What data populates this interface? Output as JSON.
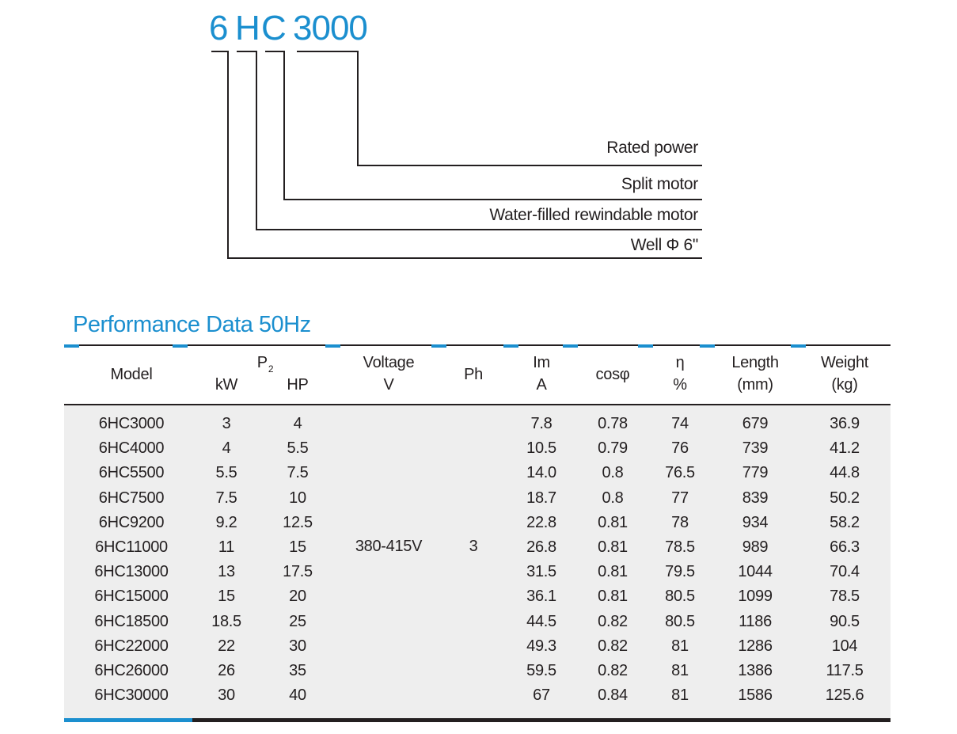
{
  "model_code": {
    "p6": "6",
    "pH": "H",
    "pC": "C",
    "power": "3000"
  },
  "legend": {
    "rated_power": "Rated power",
    "split_motor": "Split motor",
    "water_filled": "Water-filled rewindable motor",
    "well": "Well Φ 6\""
  },
  "section_title": "Performance Data 50Hz",
  "table": {
    "headers": {
      "model": "Model",
      "p2": "P",
      "p2_sub": "2",
      "kw": "kW",
      "hp": "HP",
      "voltage": "Voltage",
      "voltage_unit": "V",
      "ph": "Ph",
      "im": "Im",
      "im_unit": "A",
      "cos": "cosφ",
      "eta": "η",
      "eta_unit": "%",
      "length": "Length",
      "length_unit": "(mm)",
      "weight": "Weight",
      "weight_unit": "(kg)"
    },
    "voltage_value": "380-415V",
    "ph_value": "3",
    "columns": [
      "model",
      "kw",
      "hp",
      "im",
      "cos",
      "eta",
      "length",
      "weight"
    ],
    "rows": [
      {
        "model": "6HC3000",
        "kw": "3",
        "hp": "4",
        "im": "7.8",
        "cos": "0.78",
        "eta": "74",
        "length": "679",
        "weight": "36.9"
      },
      {
        "model": "6HC4000",
        "kw": "4",
        "hp": "5.5",
        "im": "10.5",
        "cos": "0.79",
        "eta": "76",
        "length": "739",
        "weight": "41.2"
      },
      {
        "model": "6HC5500",
        "kw": "5.5",
        "hp": "7.5",
        "im": "14.0",
        "cos": "0.8",
        "eta": "76.5",
        "length": "779",
        "weight": "44.8"
      },
      {
        "model": "6HC7500",
        "kw": "7.5",
        "hp": "10",
        "im": "18.7",
        "cos": "0.8",
        "eta": "77",
        "length": "839",
        "weight": "50.2"
      },
      {
        "model": "6HC9200",
        "kw": "9.2",
        "hp": "12.5",
        "im": "22.8",
        "cos": "0.81",
        "eta": "78",
        "length": "934",
        "weight": "58.2"
      },
      {
        "model": "6HC11000",
        "kw": "11",
        "hp": "15",
        "im": "26.8",
        "cos": "0.81",
        "eta": "78.5",
        "length": "989",
        "weight": "66.3"
      },
      {
        "model": "6HC13000",
        "kw": "13",
        "hp": "17.5",
        "im": "31.5",
        "cos": "0.81",
        "eta": "79.5",
        "length": "1044",
        "weight": "70.4"
      },
      {
        "model": "6HC15000",
        "kw": "15",
        "hp": "20",
        "im": "36.1",
        "cos": "0.81",
        "eta": "80.5",
        "length": "1099",
        "weight": "78.5"
      },
      {
        "model": "6HC18500",
        "kw": "18.5",
        "hp": "25",
        "im": "44.5",
        "cos": "0.82",
        "eta": "80.5",
        "length": "1186",
        "weight": "90.5"
      },
      {
        "model": "6HC22000",
        "kw": "22",
        "hp": "30",
        "im": "49.3",
        "cos": "0.82",
        "eta": "81",
        "length": "1286",
        "weight": "104"
      },
      {
        "model": "6HC26000",
        "kw": "26",
        "hp": "35",
        "im": "59.5",
        "cos": "0.82",
        "eta": "81",
        "length": "1386",
        "weight": "117.5"
      },
      {
        "model": "6HC30000",
        "kw": "30",
        "hp": "40",
        "im": "67",
        "cos": "0.84",
        "eta": "81",
        "length": "1586",
        "weight": "125.6"
      }
    ]
  }
}
